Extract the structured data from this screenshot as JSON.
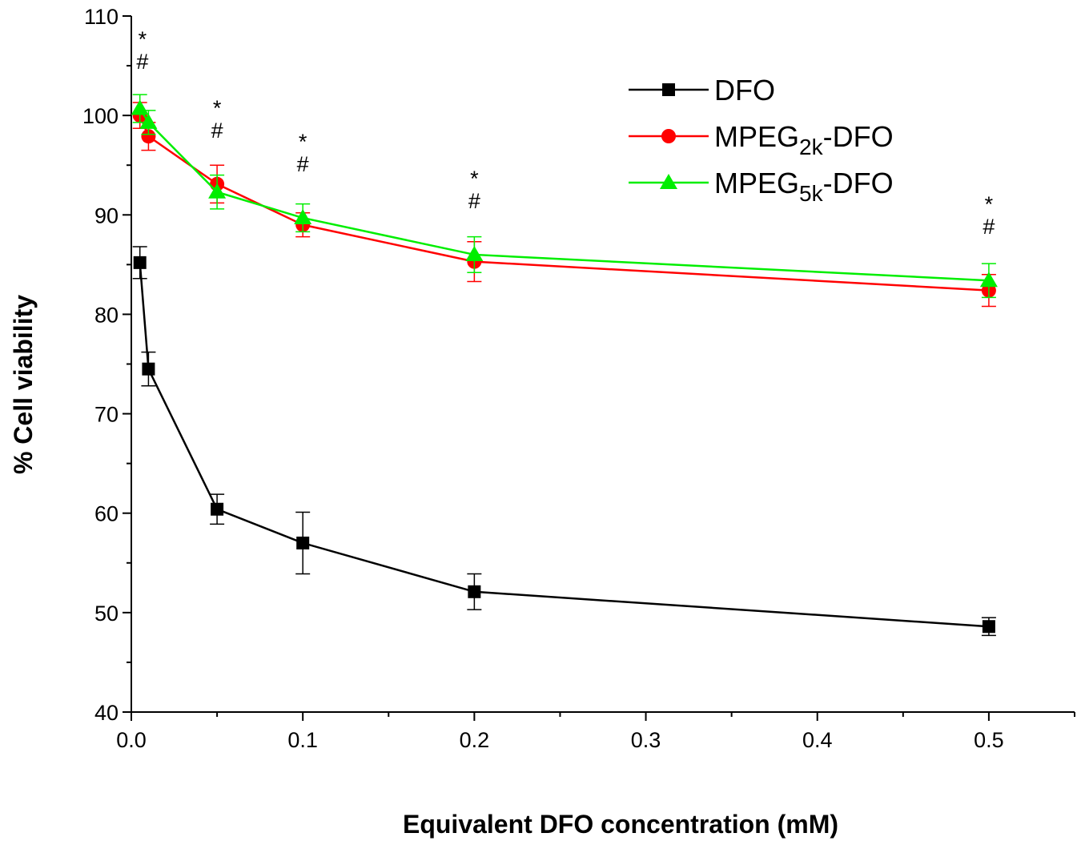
{
  "chart_data": {
    "type": "line",
    "title": "",
    "xlabel": "Equivalent DFO concentration (mM)",
    "ylabel": "% Cell viability",
    "xlim": [
      0.0,
      0.55
    ],
    "ylim": [
      40,
      110
    ],
    "xticks": [
      0.0,
      0.1,
      0.2,
      0.3,
      0.4,
      0.5
    ],
    "xtick_labels": [
      "0.0",
      "0.1",
      "0.2",
      "0.3",
      "0.4",
      "0.5"
    ],
    "yticks": [
      40,
      50,
      60,
      70,
      80,
      90,
      100,
      110
    ],
    "ytick_labels": [
      "40",
      "50",
      "60",
      "70",
      "80",
      "90",
      "100",
      "110"
    ],
    "grid": false,
    "legend_position": "top-right",
    "series": [
      {
        "name": "DFO",
        "legend_main": "DFO",
        "legend_sub": "",
        "legend_tail": "",
        "color": "#000000",
        "marker": "square",
        "x": [
          0.005,
          0.01,
          0.05,
          0.1,
          0.2,
          0.5
        ],
        "y": [
          85.2,
          74.5,
          60.4,
          57.0,
          52.1,
          48.6
        ],
        "err": [
          1.6,
          1.7,
          1.5,
          3.1,
          1.8,
          0.9
        ]
      },
      {
        "name": "MPEG2k-DFO",
        "legend_main": "MPEG",
        "legend_sub": "2k",
        "legend_tail": "-DFO",
        "color": "#ff0000",
        "marker": "circle",
        "x": [
          0.005,
          0.01,
          0.05,
          0.1,
          0.2,
          0.5
        ],
        "y": [
          100.0,
          97.9,
          93.1,
          89.0,
          85.3,
          82.4
        ],
        "err": [
          1.3,
          1.4,
          1.9,
          1.2,
          2.0,
          1.6
        ]
      },
      {
        "name": "MPEG5k-DFO",
        "legend_main": "MPEG",
        "legend_sub": "5k",
        "legend_tail": "-DFO",
        "color": "#00ee00",
        "marker": "triangle",
        "x": [
          0.005,
          0.01,
          0.05,
          0.1,
          0.2,
          0.5
        ],
        "y": [
          100.7,
          99.3,
          92.3,
          89.7,
          86.0,
          83.4
        ],
        "err": [
          1.4,
          1.2,
          1.7,
          1.4,
          1.8,
          1.7
        ]
      }
    ],
    "annotations": [
      {
        "x": 0.0065,
        "y": 100.0,
        "text_star": "*",
        "text_hash": "#"
      },
      {
        "x": 0.05,
        "y": 93.1,
        "text_star": "*",
        "text_hash": "#"
      },
      {
        "x": 0.1,
        "y": 89.7,
        "text_star": "*",
        "text_hash": "#"
      },
      {
        "x": 0.2,
        "y": 86.0,
        "text_star": "*",
        "text_hash": "#"
      },
      {
        "x": 0.5,
        "y": 83.4,
        "text_star": "*",
        "text_hash": "#"
      }
    ]
  }
}
